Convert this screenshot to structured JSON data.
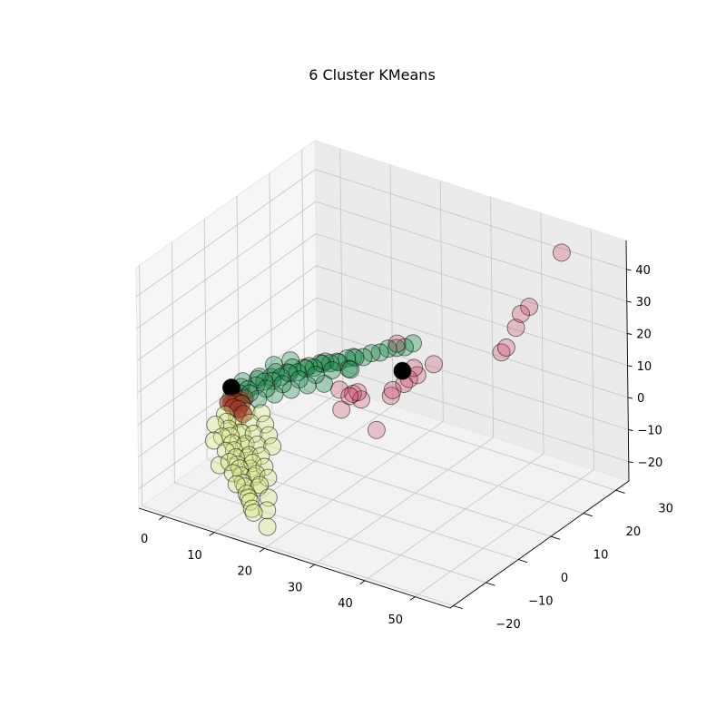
{
  "chart_data": {
    "type": "scatter",
    "projection": "3d",
    "title": "6 Cluster KMeans",
    "xlabel": "",
    "ylabel": "",
    "zlabel": "",
    "xlim": [
      -5,
      57
    ],
    "ylim": [
      -21,
      34
    ],
    "zlim": [
      -26,
      49
    ],
    "x_ticks": [
      0,
      10,
      20,
      30,
      40,
      50
    ],
    "y_ticks": [
      -20,
      -10,
      0,
      10,
      20,
      30
    ],
    "z_ticks": [
      -20,
      -10,
      0,
      10,
      20,
      30,
      40
    ],
    "grid": true,
    "legend": "none",
    "clusters": [
      {
        "color": "#1a8a4a",
        "alpha": 0.35,
        "points": [
          [
            0,
            0,
            -4
          ],
          [
            1,
            1,
            -3
          ],
          [
            2,
            2,
            -2
          ],
          [
            3,
            3,
            -1
          ],
          [
            4,
            4,
            0
          ],
          [
            5,
            5,
            0
          ],
          [
            6,
            6,
            1
          ],
          [
            7,
            7,
            2
          ],
          [
            8,
            8,
            2
          ],
          [
            9,
            9,
            3
          ],
          [
            10,
            10,
            3
          ],
          [
            11,
            11,
            4
          ],
          [
            12,
            12,
            4
          ],
          [
            13,
            13,
            4
          ],
          [
            14,
            14,
            5
          ],
          [
            15,
            15,
            5
          ],
          [
            16,
            16,
            5
          ],
          [
            17,
            17,
            6
          ],
          [
            18,
            18,
            6
          ],
          [
            0,
            3,
            -3
          ],
          [
            2,
            5,
            -1
          ],
          [
            4,
            6,
            0
          ],
          [
            6,
            8,
            1
          ],
          [
            8,
            10,
            2
          ],
          [
            10,
            12,
            3
          ],
          [
            12,
            14,
            3
          ],
          [
            14,
            16,
            4
          ],
          [
            3,
            1,
            -2
          ],
          [
            5,
            3,
            -1
          ],
          [
            7,
            5,
            0
          ],
          [
            9,
            7,
            1
          ],
          [
            11,
            9,
            2
          ],
          [
            13,
            11,
            3
          ],
          [
            15,
            13,
            3
          ],
          [
            1,
            2,
            0
          ],
          [
            3,
            4,
            1
          ],
          [
            5,
            6,
            2
          ],
          [
            7,
            8,
            3
          ],
          [
            9,
            10,
            3
          ],
          [
            11,
            12,
            4
          ],
          [
            2,
            0,
            -5
          ],
          [
            4,
            2,
            -4
          ],
          [
            6,
            4,
            -3
          ],
          [
            8,
            6,
            -2
          ],
          [
            10,
            8,
            -1
          ],
          [
            12,
            10,
            -1
          ],
          [
            16,
            12,
            4
          ],
          [
            19,
            19,
            7
          ],
          [
            20,
            20,
            7
          ],
          [
            21,
            21,
            7
          ],
          [
            22,
            22,
            8
          ],
          [
            6,
            9,
            4
          ],
          [
            4,
            7,
            3
          ]
        ]
      },
      {
        "color": "#d8e882",
        "alpha": 0.35,
        "points": [
          [
            0,
            -2,
            -8
          ],
          [
            1,
            -3,
            -9
          ],
          [
            2,
            -4,
            -10
          ],
          [
            3,
            -5,
            -11
          ],
          [
            4,
            -6,
            -12
          ],
          [
            5,
            -7,
            -13
          ],
          [
            6,
            -8,
            -14
          ],
          [
            7,
            -9,
            -15
          ],
          [
            8,
            -10,
            -15
          ],
          [
            9,
            -11,
            -16
          ],
          [
            10,
            -12,
            -17
          ],
          [
            11,
            -13,
            -17
          ],
          [
            12,
            -14,
            -18
          ],
          [
            13,
            -15,
            -18
          ],
          [
            14,
            -16,
            -18
          ],
          [
            15,
            -17,
            -19
          ],
          [
            16,
            -18,
            -19
          ],
          [
            1,
            0,
            -10
          ],
          [
            3,
            -2,
            -12
          ],
          [
            5,
            -4,
            -14
          ],
          [
            7,
            -6,
            -15
          ],
          [
            9,
            -8,
            -16
          ],
          [
            11,
            -10,
            -16
          ],
          [
            13,
            -12,
            -17
          ],
          [
            2,
            -6,
            -11
          ],
          [
            4,
            -8,
            -13
          ],
          [
            6,
            -10,
            -14
          ],
          [
            8,
            -12,
            -15
          ],
          [
            10,
            -14,
            -16
          ],
          [
            0,
            -5,
            -9
          ],
          [
            2,
            -1,
            -9
          ],
          [
            4,
            -3,
            -11
          ],
          [
            6,
            -5,
            -12
          ],
          [
            8,
            -7,
            -13
          ],
          [
            10,
            -9,
            -13
          ],
          [
            12,
            -11,
            -14
          ],
          [
            14,
            -13,
            -15
          ],
          [
            3,
            0,
            -7
          ],
          [
            5,
            -2,
            -8
          ],
          [
            7,
            -4,
            -9
          ],
          [
            9,
            -6,
            -10
          ],
          [
            11,
            -8,
            -11
          ],
          [
            13,
            -10,
            -12
          ],
          [
            15,
            -12,
            -13
          ],
          [
            17,
            -15,
            -16
          ],
          [
            18,
            -17,
            -18
          ],
          [
            6,
            0,
            -6
          ],
          [
            8,
            -2,
            -7
          ],
          [
            10,
            -4,
            -8
          ],
          [
            12,
            -6,
            -9
          ],
          [
            20,
            -20,
            -20
          ],
          [
            4,
            -10,
            -16
          ],
          [
            1,
            -7,
            -12
          ]
        ]
      },
      {
        "color": "#a33a2a",
        "alpha": 0.6,
        "points": [
          [
            0,
            -1,
            -5
          ],
          [
            1,
            -1,
            -6
          ],
          [
            1,
            0,
            -5
          ],
          [
            2,
            -1,
            -6
          ],
          [
            0,
            0,
            -6
          ],
          [
            2,
            0,
            -5
          ],
          [
            0,
            1,
            -4
          ],
          [
            1,
            1,
            -5
          ],
          [
            3,
            -1,
            -7
          ],
          [
            2,
            1,
            -4
          ]
        ]
      },
      {
        "color": "#c8284a",
        "alpha": 0.25,
        "points": [
          [
            48,
            28,
            45
          ],
          [
            44,
            24,
            29
          ],
          [
            43,
            23,
            27
          ],
          [
            40,
            26,
            19
          ],
          [
            40,
            23,
            15
          ],
          [
            39,
            23,
            13
          ],
          [
            28,
            8,
            21
          ],
          [
            32,
            13,
            13
          ],
          [
            30,
            10,
            13
          ],
          [
            30,
            11,
            10
          ],
          [
            29,
            10,
            9
          ],
          [
            28,
            10,
            7
          ],
          [
            27,
            8,
            6
          ],
          [
            26,
            9,
            3
          ],
          [
            22,
            5,
            5
          ],
          [
            22,
            6,
            2
          ],
          [
            21,
            4,
            4
          ],
          [
            21,
            5,
            4
          ],
          [
            19,
            4,
            5
          ],
          [
            20,
            3,
            0
          ],
          [
            25,
            6,
            -6
          ]
        ]
      },
      {
        "color": "#000000",
        "alpha": 1.0,
        "points": [
          [
            0,
            0,
            -1
          ],
          [
            29,
            8,
            13
          ]
        ]
      }
    ]
  }
}
